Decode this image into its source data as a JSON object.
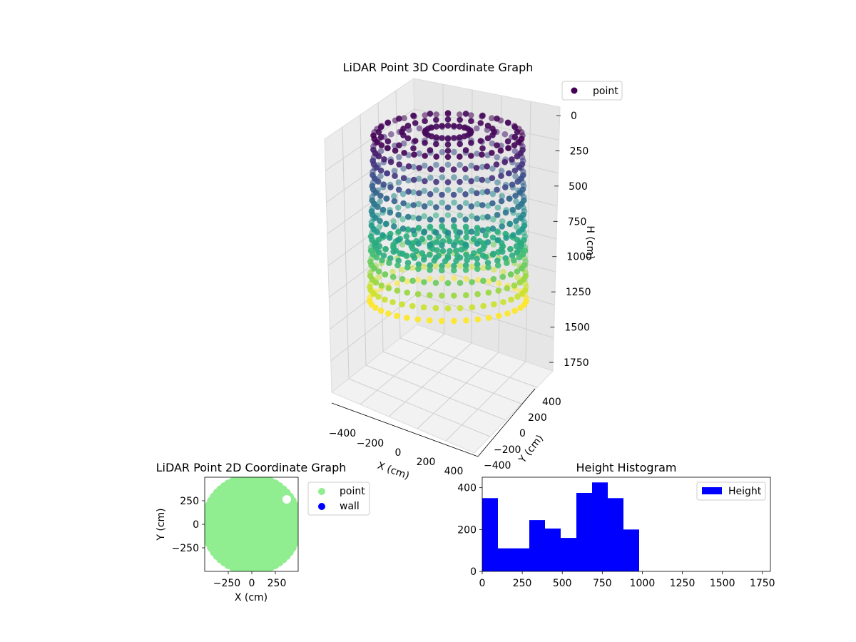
{
  "chart_data": [
    {
      "type": "scatter3d",
      "title": "LiDAR Point 3D Coordinate Graph",
      "xlabel": "X (cm)",
      "ylabel": "Y (cm)",
      "zlabel": "H (cm)",
      "xticks": [
        "−400",
        "−200",
        "0",
        "200",
        "400"
      ],
      "yticks": [
        "−400",
        "−200",
        "0",
        "200",
        "400"
      ],
      "zticks": [
        "0",
        "250",
        "500",
        "750",
        "1000",
        "1250",
        "1500",
        "1750"
      ],
      "zlim": [
        0,
        1750
      ],
      "legend": {
        "label": "point",
        "color": "#440154",
        "placement": "top-right"
      },
      "colormap": "viridis",
      "shape": "cylindrical point cloud, radius ~450 cm, height 0 to ~1000 cm, colored by height"
    },
    {
      "type": "scatter",
      "title": "LiDAR Point 2D Coordinate Graph",
      "xlabel": "X (cm)",
      "ylabel": "Y (cm)",
      "xticks": [
        "−250",
        "0",
        "250"
      ],
      "yticks": [
        "250",
        "0",
        "−250"
      ],
      "xlim": [
        -500,
        500
      ],
      "ylim": [
        -500,
        500
      ],
      "legend": [
        {
          "label": "point",
          "color": "#90ee90"
        },
        {
          "label": "wall",
          "color": "#0000ff"
        }
      ],
      "legend_placement": "outside-right"
    },
    {
      "type": "bar",
      "title": "Height Histogram",
      "series_name": "Height",
      "color": "#0000ff",
      "bin_edges": [
        0,
        98,
        196,
        294,
        392,
        490,
        588,
        686,
        784,
        882,
        980
      ],
      "values": [
        350,
        110,
        110,
        245,
        205,
        160,
        375,
        425,
        350,
        200
      ],
      "xlim": [
        0,
        1800
      ],
      "ylim": [
        0,
        450
      ],
      "xticks": [
        "0",
        "250",
        "500",
        "750",
        "1000",
        "1250",
        "1500",
        "1750"
      ],
      "xtick_values": [
        0,
        250,
        500,
        750,
        1000,
        1250,
        1500,
        1750
      ],
      "yticks": [
        "0",
        "200",
        "400"
      ],
      "ytick_values": [
        0,
        200,
        400
      ],
      "legend_placement": "top-right"
    }
  ]
}
